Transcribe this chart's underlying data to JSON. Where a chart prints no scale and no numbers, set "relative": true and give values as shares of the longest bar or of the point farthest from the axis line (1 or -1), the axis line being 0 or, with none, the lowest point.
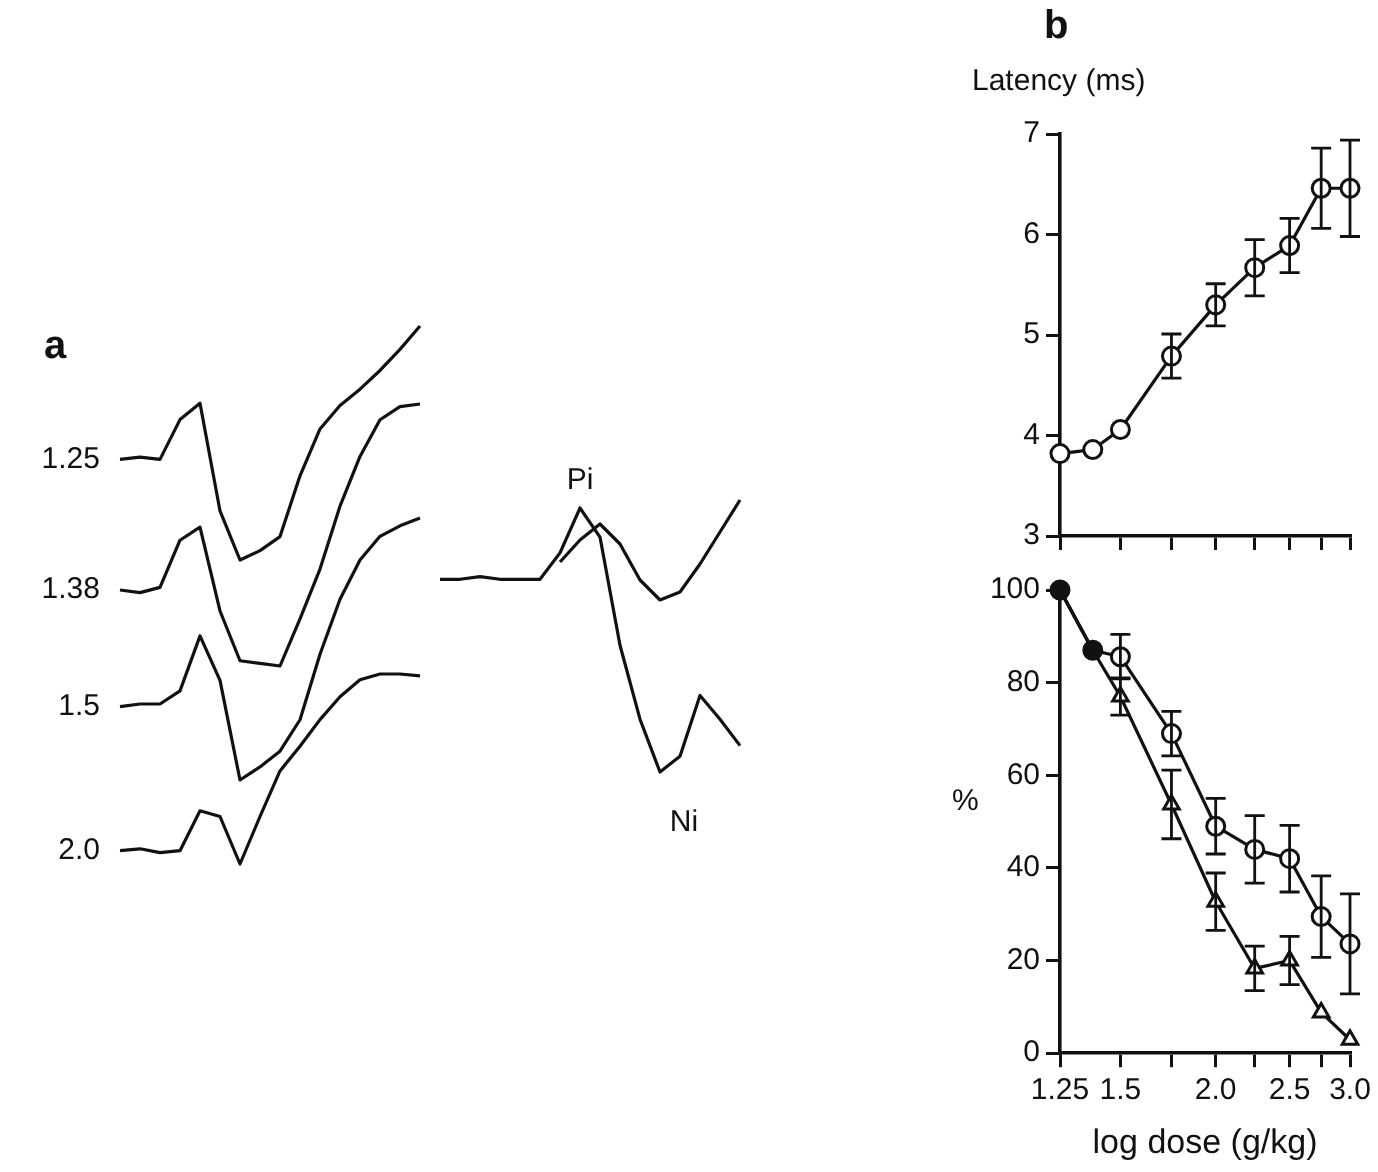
{
  "chart_data": [
    {
      "type": "line",
      "relative": true,
      "annotations": [
        "a"
      ],
      "marker": "none",
      "tick_labels": false,
      "categories": [
        null,
        null,
        null,
        null,
        null,
        null,
        null,
        null,
        null,
        null,
        null,
        null,
        null,
        null,
        null,
        null
      ],
      "series": [
        {
          "name": "1.25",
          "color": "#111111",
          "values": [
            0.43,
            0.44,
            0.43,
            0.6,
            0.67,
            0.21,
            0,
            0.04,
            0.1,
            0.36,
            0.56,
            0.66,
            0.73,
            0.81,
            0.9,
            1.0
          ]
        }
      ]
    },
    {
      "type": "line",
      "relative": true,
      "marker": "none",
      "tick_labels": false,
      "categories": [
        null,
        null,
        null,
        null,
        null,
        null,
        null,
        null,
        null,
        null,
        null,
        null,
        null,
        null,
        null,
        null
      ],
      "series": [
        {
          "name": "1.38",
          "color": "#111111",
          "values": [
            0.29,
            0.28,
            0.3,
            0.48,
            0.53,
            0.21,
            0.02,
            0.01,
            0,
            0.18,
            0.37,
            0.61,
            0.8,
            0.94,
            0.99,
            1.0
          ]
        }
      ]
    },
    {
      "type": "line",
      "relative": true,
      "marker": "none",
      "tick_labels": false,
      "categories": [
        null,
        null,
        null,
        null,
        null,
        null,
        null,
        null,
        null,
        null,
        null,
        null,
        null,
        null,
        null,
        null
      ],
      "series": [
        {
          "name": "1.5",
          "color": "#111111",
          "values": [
            0.28,
            0.29,
            0.29,
            0.34,
            0.55,
            0.38,
            0,
            0.05,
            0.11,
            0.23,
            0.48,
            0.69,
            0.84,
            0.93,
            0.97,
            1.0
          ]
        }
      ]
    },
    {
      "type": "line",
      "relative": true,
      "marker": "none",
      "tick_labels": false,
      "categories": [
        null,
        null,
        null,
        null,
        null,
        null,
        null,
        null,
        null,
        null,
        null,
        null,
        null,
        null,
        null,
        null
      ],
      "series": [
        {
          "name": "2.0",
          "color": "#111111",
          "values": [
            0.07,
            0.08,
            0.06,
            0.07,
            0.28,
            0.25,
            0,
            0.25,
            0.49,
            0.62,
            0.76,
            0.88,
            0.97,
            1.0,
            1.0,
            0.99
          ]
        }
      ]
    },
    {
      "type": "line",
      "relative": true,
      "annotations": [
        "Pi",
        "Ni"
      ],
      "marker": "none",
      "tick_labels": false,
      "categories": [
        null,
        null,
        null,
        null,
        null,
        null,
        null,
        null,
        null,
        null,
        null,
        null,
        null,
        null,
        null,
        null
      ],
      "series": [
        {
          "color": "#111111",
          "values": [
            0.73,
            0.73,
            0.74,
            0.73,
            0.73,
            0.73,
            0.83,
            1.0,
            0.89,
            0.48,
            0.2,
            0,
            0.06,
            0.29,
            0.2,
            0.1
          ]
        }
      ]
    },
    {
      "type": "line",
      "relative": true,
      "marker": "none",
      "tick_labels": false,
      "categories": [
        null,
        null,
        null,
        null,
        null,
        null,
        null,
        null,
        null,
        null
      ],
      "series": [
        {
          "color": "#111111",
          "values": [
            0.38,
            0.6,
            0.76,
            0.56,
            0.2,
            0,
            0.08,
            0.36,
            0.68,
            1.0
          ]
        }
      ]
    },
    {
      "type": "line",
      "annotations": [
        "b"
      ],
      "ylabel": "Latency (ms)",
      "log": "x",
      "tick_labels": "y",
      "marker": "circle",
      "x": [
        1.25,
        1.38,
        1.5,
        1.75,
        2.0,
        2.25,
        2.5,
        2.75,
        3.0
      ],
      "xlim": [
        1.25,
        3.0
      ],
      "xticks": [
        {
          "value": 1.25,
          "label": null
        },
        {
          "value": 1.5,
          "label": null
        },
        {
          "value": 1.75,
          "label": null
        },
        {
          "value": 2.0,
          "label": null
        },
        {
          "value": 2.25,
          "label": null
        },
        {
          "value": 2.5,
          "label": null
        },
        {
          "value": 2.75,
          "label": null
        },
        {
          "value": 3.0,
          "label": null
        }
      ],
      "ylim": [
        3,
        7
      ],
      "yticks": [
        3,
        4,
        5,
        6,
        7
      ],
      "series": [
        {
          "color": "#111111",
          "values": [
            3.82,
            3.86,
            4.06,
            4.79,
            5.3,
            5.67,
            5.89,
            6.46,
            6.46
          ],
          "errors": [
            null,
            null,
            null,
            0.22,
            0.21,
            0.28,
            0.27,
            0.4,
            0.48
          ]
        }
      ]
    },
    {
      "type": "line",
      "xlabel": "log dose (g/kg)",
      "ylabel": "%",
      "log": "x",
      "x": [
        1.25,
        1.38,
        1.5,
        1.75,
        2.0,
        2.25,
        2.5,
        2.75,
        3.0
      ],
      "xlim": [
        1.25,
        3.0
      ],
      "xticks": [
        1.25,
        1.5,
        {
          "value": 1.75,
          "label": null
        },
        {
          "value": 2.0,
          "label": "2.0"
        },
        {
          "value": 2.25,
          "label": null
        },
        2.5,
        {
          "value": 2.75,
          "label": null
        },
        {
          "value": 3.0,
          "label": "3.0"
        }
      ],
      "ylim": [
        0,
        100
      ],
      "yticks": [
        0,
        20,
        40,
        60,
        80,
        100
      ],
      "series": [
        {
          "color": "#111111",
          "marker": "circle",
          "x": [
            1.25,
            1.38
          ],
          "values": [
            100,
            87
          ],
          "colors": [
            "#111111",
            "#111111"
          ]
        },
        {
          "color": "#111111",
          "marker": "circle",
          "values": [
            100,
            87,
            85.6,
            69,
            49,
            44,
            42,
            29.5,
            23.6
          ],
          "errors": [
            null,
            null,
            4.8,
            4.8,
            6,
            7.3,
            7.2,
            8.8,
            10.8
          ]
        },
        {
          "color": "#111111",
          "marker": "triangle",
          "values": [
            100,
            87,
            77,
            53.7,
            32.7,
            18.3,
            20,
            8.8,
            2.9
          ],
          "errors": [
            null,
            null,
            4,
            7.4,
            6.2,
            4.8,
            5.2,
            null,
            null
          ]
        }
      ]
    }
  ]
}
